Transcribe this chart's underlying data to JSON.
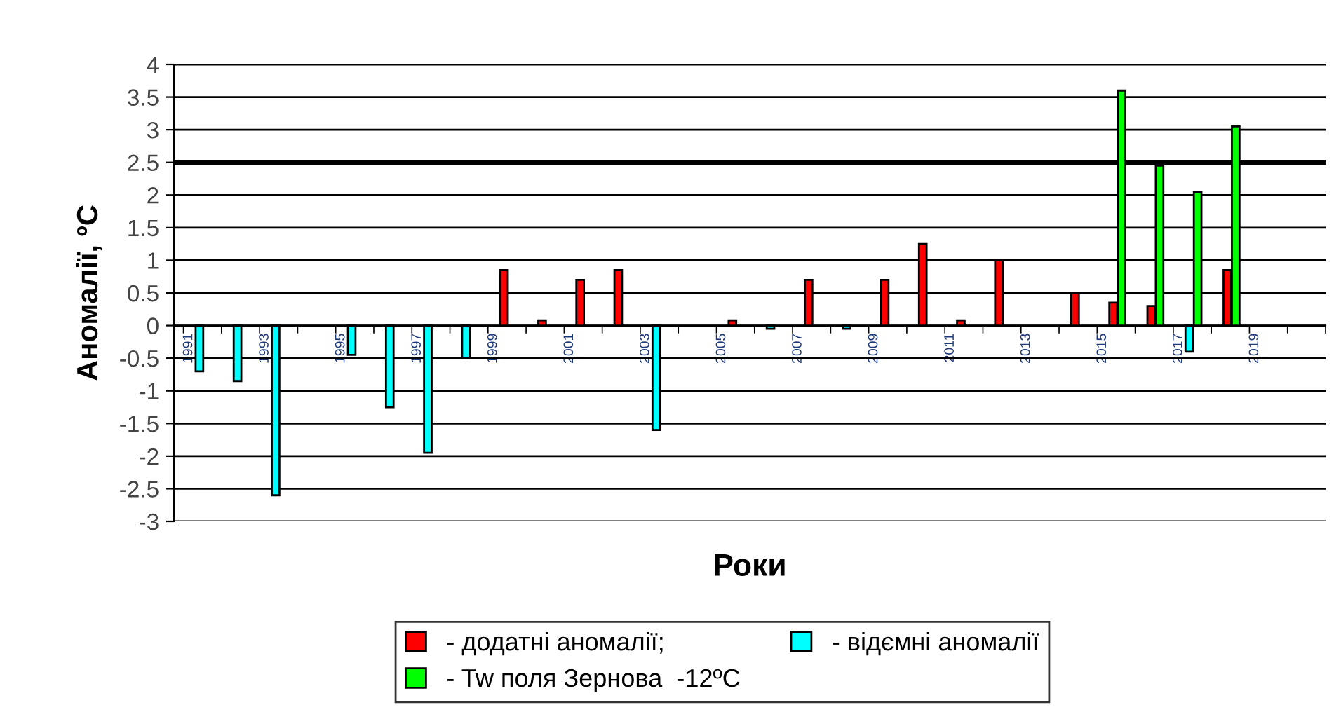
{
  "chart_data": {
    "type": "bar",
    "xlabel": "Роки",
    "ylabel": "Аномалії, ºC",
    "categories": [
      "1991",
      null,
      "1993",
      null,
      "1995",
      null,
      "1997",
      null,
      "1999",
      null,
      "2001",
      null,
      "2003",
      null,
      "2005",
      null,
      "2007",
      null,
      "2009",
      null,
      "2011",
      null,
      "2013",
      null,
      "2015",
      null,
      "2017",
      null,
      "2019",
      null
    ],
    "series": [
      {
        "name": "- додатні аномалії;",
        "color": "#ff0000",
        "values": [
          null,
          null,
          null,
          null,
          null,
          null,
          null,
          null,
          0.85,
          0.08,
          0.7,
          0.85,
          null,
          null,
          0.08,
          null,
          0.7,
          null,
          0.7,
          1.25,
          0.08,
          1.0,
          null,
          0.5,
          0.35,
          0.3,
          null,
          0.85,
          null,
          null
        ]
      },
      {
        "name": "- відємні аномалії",
        "color": "#00ffff",
        "values": [
          -0.7,
          -0.85,
          -2.6,
          null,
          -0.45,
          -1.25,
          -1.95,
          -0.5,
          null,
          null,
          null,
          null,
          -1.6,
          null,
          null,
          -0.05,
          null,
          -0.05,
          null,
          null,
          null,
          null,
          null,
          null,
          null,
          null,
          -0.4,
          null,
          null,
          null
        ]
      },
      {
        "name": "- Tw поля Зернова  -12ºC",
        "color": "#00ff00",
        "values": [
          null,
          null,
          null,
          null,
          null,
          null,
          null,
          null,
          null,
          null,
          null,
          null,
          null,
          null,
          null,
          null,
          null,
          null,
          null,
          null,
          null,
          null,
          null,
          null,
          3.6,
          2.45,
          2.05,
          3.05,
          null,
          null
        ]
      }
    ],
    "ylim": [
      -3,
      4
    ],
    "yticks": [
      -3,
      -2.5,
      -2,
      -1.5,
      -1,
      -0.5,
      0,
      0.5,
      1,
      1.5,
      2,
      2.5,
      3,
      3.5,
      4
    ],
    "grid": "y",
    "legend": "bottom",
    "ref_lines": [
      {
        "axis": "y",
        "value": 2.5,
        "color": "#000000"
      }
    ]
  }
}
